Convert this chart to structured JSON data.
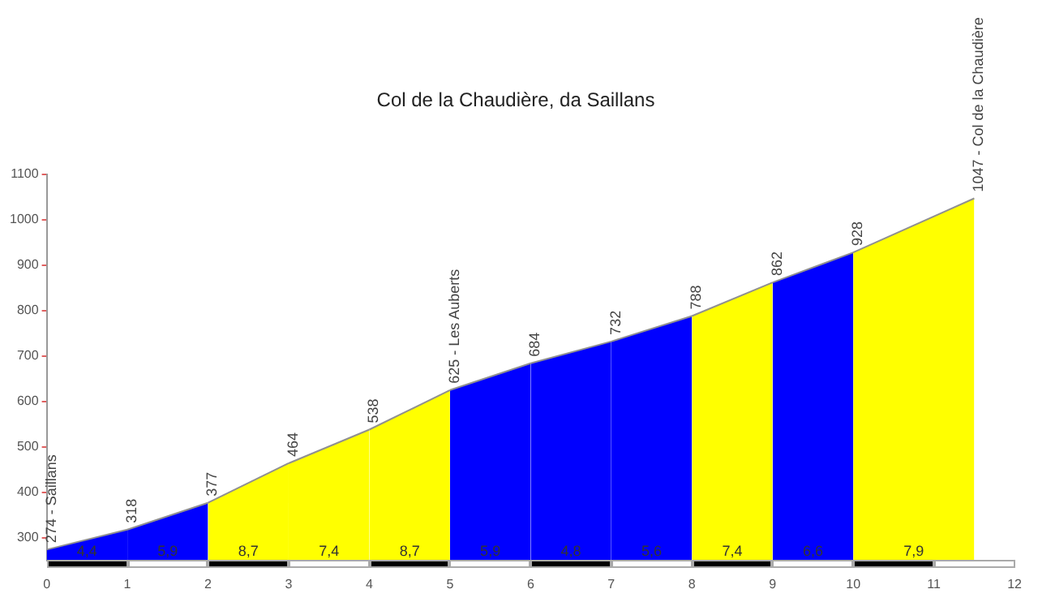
{
  "chart_data": {
    "type": "area",
    "title": "Col de la Chaudière, da Saillans",
    "series": [
      {
        "color": "#0000ff",
        "x": [
          0,
          1
        ],
        "values": [
          274,
          318
        ]
      },
      {
        "color": "#0000ff",
        "x": [
          1,
          2
        ],
        "values": [
          318,
          377
        ]
      },
      {
        "color": "#ffff00",
        "x": [
          2,
          3
        ],
        "values": [
          377,
          464
        ]
      },
      {
        "color": "#ffff00",
        "x": [
          3,
          4
        ],
        "values": [
          464,
          538
        ]
      },
      {
        "color": "#ffff00",
        "x": [
          4,
          5
        ],
        "values": [
          538,
          625
        ]
      },
      {
        "color": "#0000ff",
        "x": [
          5,
          6
        ],
        "values": [
          625,
          684
        ]
      },
      {
        "color": "#0000ff",
        "x": [
          6,
          7
        ],
        "values": [
          684,
          732
        ]
      },
      {
        "color": "#0000ff",
        "x": [
          7,
          8
        ],
        "values": [
          732,
          788
        ]
      },
      {
        "color": "#ffff00",
        "x": [
          8,
          9
        ],
        "values": [
          788,
          862
        ]
      },
      {
        "color": "#0000ff",
        "x": [
          9,
          10
        ],
        "values": [
          862,
          928
        ]
      },
      {
        "color": "#ffff00",
        "x": [
          10,
          11.5
        ],
        "values": [
          928,
          1047
        ]
      }
    ],
    "xlim": [
      0,
      12
    ],
    "xticks": [
      0,
      1,
      2,
      3,
      4,
      5,
      6,
      7,
      8,
      9,
      10,
      11,
      12
    ],
    "ylim": [
      250,
      1100
    ],
    "yticks": [
      300,
      400,
      500,
      600,
      700,
      800,
      900,
      1000,
      1100
    ],
    "grid": false,
    "legend": false,
    "annotations": [
      {
        "text": "274 - Saillans",
        "x": 0,
        "y": 274
      },
      {
        "text": "318",
        "x": 1,
        "y": 318
      },
      {
        "text": "377",
        "x": 2,
        "y": 377
      },
      {
        "text": "464",
        "x": 3,
        "y": 464
      },
      {
        "text": "538",
        "x": 4,
        "y": 538
      },
      {
        "text": "625 - Les Auberts",
        "x": 5,
        "y": 625
      },
      {
        "text": "684",
        "x": 6,
        "y": 684
      },
      {
        "text": "732",
        "x": 7,
        "y": 732
      },
      {
        "text": "788",
        "x": 8,
        "y": 788
      },
      {
        "text": "862",
        "x": 9,
        "y": 862
      },
      {
        "text": "928",
        "x": 10,
        "y": 928
      },
      {
        "text": "1047 - Col de la Chaudière",
        "x": 11.5,
        "y": 1047
      },
      "4,4",
      "5,9",
      "8,7",
      "7,4",
      "8,7",
      "5,9",
      "4,8",
      "5,6",
      "7,4",
      "6,6",
      "7,9"
    ]
  }
}
